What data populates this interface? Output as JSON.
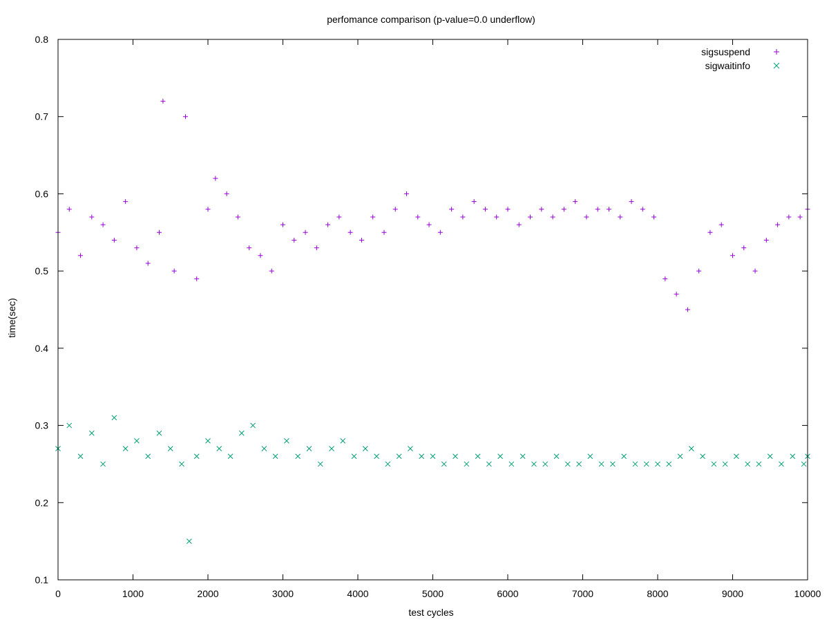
{
  "chart_data": {
    "type": "scatter",
    "title": "perfomance comparison (p-value=0.0 underflow)",
    "xlabel": "test cycles",
    "ylabel": "time(sec)",
    "xlim": [
      0,
      10000
    ],
    "ylim": [
      0.1,
      0.8
    ],
    "xticks": [
      0,
      1000,
      2000,
      3000,
      4000,
      5000,
      6000,
      7000,
      8000,
      9000,
      10000
    ],
    "yticks": [
      0.1,
      0.2,
      0.3,
      0.4,
      0.5,
      0.6,
      0.7,
      0.8
    ],
    "xtick_labels": [
      "0",
      "1000",
      "2000",
      "3000",
      "4000",
      "5000",
      "6000",
      "7000",
      "8000",
      "9000",
      "10000"
    ],
    "ytick_labels": [
      "0.1",
      "0.2",
      "0.3",
      "0.4",
      "0.5",
      "0.6",
      "0.7",
      "0.8"
    ],
    "grid": false,
    "legend_position": "top-right",
    "series": [
      {
        "name": "sigsuspend",
        "marker": "plus",
        "color": "#9400d3",
        "x": [
          0,
          150,
          300,
          450,
          600,
          750,
          900,
          1050,
          1200,
          1350,
          1400,
          1550,
          1700,
          1850,
          2000,
          2100,
          2250,
          2400,
          2550,
          2700,
          2850,
          3000,
          3150,
          3300,
          3450,
          3600,
          3750,
          3900,
          4050,
          4200,
          4350,
          4500,
          4650,
          4800,
          4950,
          5100,
          5250,
          5400,
          5550,
          5700,
          5850,
          6000,
          6150,
          6300,
          6450,
          6600,
          6750,
          6900,
          7050,
          7200,
          7350,
          7500,
          7650,
          7800,
          7950,
          8100,
          8250,
          8400,
          8550,
          8700,
          8850,
          9000,
          9150,
          9300,
          9450,
          9600,
          9750,
          9900,
          10000
        ],
        "y": [
          0.55,
          0.58,
          0.52,
          0.57,
          0.56,
          0.54,
          0.59,
          0.53,
          0.51,
          0.55,
          0.72,
          0.5,
          0.7,
          0.49,
          0.58,
          0.62,
          0.6,
          0.57,
          0.53,
          0.52,
          0.5,
          0.56,
          0.54,
          0.55,
          0.53,
          0.56,
          0.57,
          0.55,
          0.54,
          0.57,
          0.55,
          0.58,
          0.6,
          0.57,
          0.56,
          0.55,
          0.58,
          0.57,
          0.59,
          0.58,
          0.57,
          0.58,
          0.56,
          0.57,
          0.58,
          0.57,
          0.58,
          0.59,
          0.57,
          0.58,
          0.58,
          0.57,
          0.59,
          0.58,
          0.57,
          0.49,
          0.47,
          0.45,
          0.5,
          0.55,
          0.56,
          0.52,
          0.53,
          0.5,
          0.54,
          0.56,
          0.57,
          0.57,
          0.58
        ]
      },
      {
        "name": "sigwaitinfo",
        "marker": "cross",
        "color": "#009e73",
        "x": [
          0,
          150,
          300,
          450,
          600,
          750,
          900,
          1050,
          1200,
          1350,
          1500,
          1650,
          1750,
          1850,
          2000,
          2150,
          2300,
          2450,
          2600,
          2750,
          2900,
          3050,
          3200,
          3350,
          3500,
          3650,
          3800,
          3950,
          4100,
          4250,
          4400,
          4550,
          4700,
          4850,
          5000,
          5150,
          5300,
          5450,
          5600,
          5750,
          5900,
          6050,
          6200,
          6350,
          6500,
          6650,
          6800,
          6950,
          7100,
          7250,
          7400,
          7550,
          7700,
          7850,
          8000,
          8150,
          8300,
          8450,
          8600,
          8750,
          8900,
          9050,
          9200,
          9350,
          9500,
          9650,
          9800,
          9950,
          10000
        ],
        "y": [
          0.27,
          0.3,
          0.26,
          0.29,
          0.25,
          0.31,
          0.27,
          0.28,
          0.26,
          0.29,
          0.27,
          0.25,
          0.15,
          0.26,
          0.28,
          0.27,
          0.26,
          0.29,
          0.3,
          0.27,
          0.26,
          0.28,
          0.26,
          0.27,
          0.25,
          0.27,
          0.28,
          0.26,
          0.27,
          0.26,
          0.25,
          0.26,
          0.27,
          0.26,
          0.26,
          0.25,
          0.26,
          0.25,
          0.26,
          0.25,
          0.26,
          0.25,
          0.26,
          0.25,
          0.25,
          0.26,
          0.25,
          0.25,
          0.26,
          0.25,
          0.25,
          0.26,
          0.25,
          0.25,
          0.25,
          0.25,
          0.26,
          0.27,
          0.26,
          0.25,
          0.25,
          0.26,
          0.25,
          0.25,
          0.26,
          0.25,
          0.26,
          0.25,
          0.26
        ]
      }
    ]
  }
}
